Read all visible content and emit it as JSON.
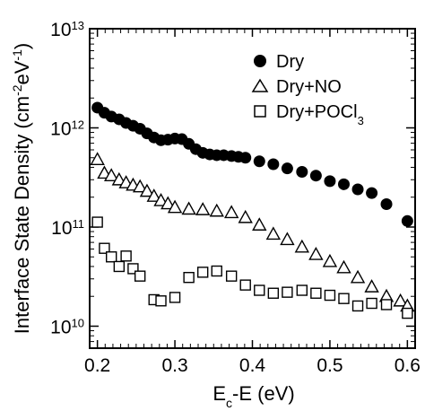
{
  "chart_data": {
    "type": "scatter",
    "xlabel": {
      "base": "E",
      "sub": "c",
      "rest": "-E (eV)"
    },
    "ylabel": {
      "prefix": "Interface State Density (cm",
      "sup1": "-2",
      "mid": "eV",
      "sup2": "-1",
      "suffix": ")"
    },
    "xlim": [
      0.19,
      0.61
    ],
    "ylim": [
      6000000000.0,
      10000000000000.0
    ],
    "yscale": "log",
    "x_ticks": [
      {
        "value": 0.2,
        "label": "0.2"
      },
      {
        "value": 0.3,
        "label": "0.3"
      },
      {
        "value": 0.4,
        "label": "0.4"
      },
      {
        "value": 0.5,
        "label": "0.5"
      },
      {
        "value": 0.6,
        "label": "0.6"
      }
    ],
    "y_ticks": [
      {
        "value": 10000000000.0,
        "base": "10",
        "exp": "10"
      },
      {
        "value": 100000000000.0,
        "base": "10",
        "exp": "11"
      },
      {
        "value": 1000000000000.0,
        "base": "10",
        "exp": "12"
      },
      {
        "value": 10000000000000.0,
        "base": "10",
        "exp": "13"
      }
    ],
    "legend_position": "top-right",
    "series": [
      {
        "name": "Dry",
        "name_sub": "",
        "marker": "filled-circle",
        "color": "#000000",
        "x": [
          0.2,
          0.209,
          0.218,
          0.228,
          0.237,
          0.246,
          0.255,
          0.264,
          0.273,
          0.282,
          0.291,
          0.3,
          0.309,
          0.318,
          0.327,
          0.336,
          0.345,
          0.354,
          0.363,
          0.373,
          0.382,
          0.391,
          0.409,
          0.427,
          0.445,
          0.464,
          0.482,
          0.5,
          0.518,
          0.536,
          0.554,
          0.573,
          0.6
        ],
        "y": [
          1600000000000.0,
          1420000000000.0,
          1300000000000.0,
          1220000000000.0,
          1120000000000.0,
          1050000000000.0,
          980000000000.0,
          880000000000.0,
          800000000000.0,
          750000000000.0,
          760000000000.0,
          780000000000.0,
          770000000000.0,
          690000000000.0,
          610000000000.0,
          560000000000.0,
          540000000000.0,
          530000000000.0,
          530000000000.0,
          520000000000.0,
          510000000000.0,
          500000000000.0,
          460000000000.0,
          430000000000.0,
          390000000000.0,
          360000000000.0,
          330000000000.0,
          290000000000.0,
          270000000000.0,
          240000000000.0,
          220000000000.0,
          170000000000.0,
          115000000000.0
        ]
      },
      {
        "name": "Dry+NO",
        "name_sub": "",
        "marker": "open-triangle",
        "color": "#000000",
        "x": [
          0.2,
          0.209,
          0.218,
          0.228,
          0.237,
          0.246,
          0.255,
          0.264,
          0.273,
          0.282,
          0.291,
          0.3,
          0.318,
          0.336,
          0.354,
          0.373,
          0.391,
          0.409,
          0.427,
          0.445,
          0.464,
          0.482,
          0.5,
          0.518,
          0.536,
          0.554,
          0.573,
          0.591,
          0.6
        ],
        "y": [
          480000000000.0,
          350000000000.0,
          330000000000.0,
          300000000000.0,
          280000000000.0,
          265000000000.0,
          255000000000.0,
          230000000000.0,
          205000000000.0,
          185000000000.0,
          172000000000.0,
          158000000000.0,
          152000000000.0,
          150000000000.0,
          145000000000.0,
          140000000000.0,
          125000000000.0,
          105000000000.0,
          85000000000.0,
          75000000000.0,
          63000000000.0,
          53000000000.0,
          45000000000.0,
          39000000000.0,
          31000000000.0,
          25000000000.0,
          20000000000.0,
          18000000000.0,
          16000000000.0
        ]
      },
      {
        "name": "Dry+POCl",
        "name_sub": "3",
        "marker": "open-square",
        "color": "#000000",
        "x": [
          0.2,
          0.209,
          0.218,
          0.228,
          0.237,
          0.246,
          0.255,
          0.273,
          0.282,
          0.3,
          0.318,
          0.336,
          0.354,
          0.373,
          0.391,
          0.409,
          0.427,
          0.445,
          0.464,
          0.482,
          0.5,
          0.518,
          0.536,
          0.554,
          0.573,
          0.6
        ],
        "y": [
          112000000000.0,
          61000000000.0,
          50000000000.0,
          40000000000.0,
          51000000000.0,
          38000000000.0,
          32000000000.0,
          18500000000.0,
          18000000000.0,
          19500000000.0,
          31000000000.0,
          35000000000.0,
          36000000000.0,
          32000000000.0,
          26000000000.0,
          23000000000.0,
          21500000000.0,
          22000000000.0,
          23000000000.0,
          21500000000.0,
          20500000000.0,
          19000000000.0,
          16000000000.0,
          17000000000.0,
          16500000000.0,
          13500000000.0
        ]
      }
    ]
  }
}
